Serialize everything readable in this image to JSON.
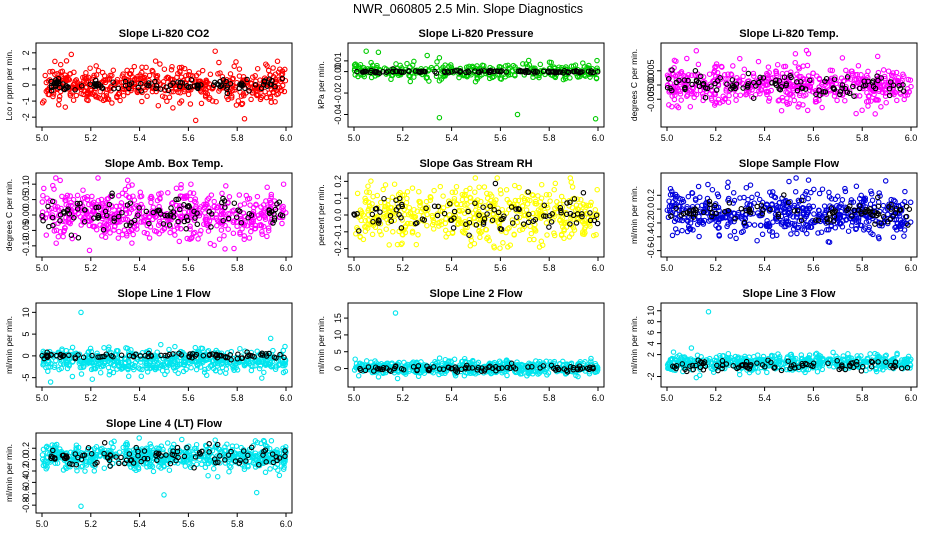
{
  "figure_title": "NWR_060805  2.5 Min. Slope Diagnostics",
  "chart_data": [
    {
      "type": "scatter",
      "title": "Slope Li-820 CO2",
      "ylabel": "Lco r ppm per min.",
      "xlim": [
        5.0,
        6.0
      ],
      "ylim": [
        -2.3,
        2.3
      ],
      "xticks": [
        "5.0",
        "5.2",
        "5.4",
        "5.6",
        "5.8",
        "6.0"
      ],
      "yticks": [
        "-2",
        "-1",
        "0",
        "1",
        "2"
      ],
      "ytick_values": [
        -2,
        -1,
        0,
        1,
        2
      ],
      "series": [
        {
          "color": "#ff0000",
          "n": 520,
          "center": 0.0,
          "spread": 0.55,
          "outliers": [
            [
              5.63,
              -2.2
            ],
            [
              5.71,
              2.1
            ],
            [
              5.12,
              1.9
            ],
            [
              5.83,
              -2.1
            ]
          ]
        },
        {
          "color": "#000000",
          "n": 110,
          "center": 0.0,
          "spread": 0.18,
          "outliers": []
        }
      ]
    },
    {
      "type": "scatter",
      "title": "Slope Li-820 Pressure",
      "ylabel": "kPa per min.",
      "xlim": [
        5.0,
        6.0
      ],
      "ylim": [
        -0.047,
        0.022
      ],
      "xticks": [
        "5.0",
        "5.2",
        "5.4",
        "5.6",
        "5.8",
        "6.0"
      ],
      "yticks": [
        "-0.04",
        "-0.02",
        "0.00",
        "0.01"
      ],
      "ytick_values": [
        -0.04,
        -0.02,
        0.0,
        0.01
      ],
      "series": [
        {
          "color": "#00cc00",
          "n": 320,
          "center": 0.0,
          "spread": 0.0035,
          "outliers": [
            [
              5.35,
              -0.043
            ],
            [
              5.67,
              -0.04
            ],
            [
              5.99,
              -0.044
            ],
            [
              5.05,
              0.019
            ],
            [
              5.1,
              0.018
            ],
            [
              5.3,
              0.015
            ]
          ]
        },
        {
          "color": "#000000",
          "n": 120,
          "center": 0.0,
          "spread": 0.0006,
          "outliers": []
        }
      ]
    },
    {
      "type": "scatter",
      "title": "Slope Li-820 Temp.",
      "ylabel": "degrees C per min.",
      "xlim": [
        5.0,
        6.0
      ],
      "ylim": [
        -0.013,
        0.013
      ],
      "xticks": [
        "5.0",
        "5.2",
        "5.4",
        "5.6",
        "5.8",
        "6.0"
      ],
      "yticks": [
        "-0.005",
        "0.000",
        "0.005"
      ],
      "ytick_values": [
        -0.005,
        0.0,
        0.005
      ],
      "series": [
        {
          "color": "#ff00ff",
          "n": 520,
          "center": 0.0,
          "spread": 0.0035,
          "outliers": [
            [
              5.12,
              0.012
            ],
            [
              5.58,
              0.011
            ]
          ]
        },
        {
          "color": "#000000",
          "n": 110,
          "center": 0.0,
          "spread": 0.002,
          "outliers": []
        }
      ]
    },
    {
      "type": "scatter",
      "title": "Slope Amb. Box Temp.",
      "ylabel": "degrees C per min.",
      "xlim": [
        5.0,
        6.0
      ],
      "ylim": [
        -0.12,
        0.12
      ],
      "xticks": [
        "5.0",
        "5.2",
        "5.4",
        "5.6",
        "5.8",
        "6.0"
      ],
      "yticks": [
        "-0.10",
        "-0.05",
        "0.00",
        "0.05",
        "0.10"
      ],
      "ytick_values": [
        -0.1,
        -0.05,
        0.0,
        0.05,
        0.1
      ],
      "series": [
        {
          "color": "#ff00ff",
          "n": 560,
          "center": 0.0,
          "spread": 0.042,
          "outliers": [
            [
              5.75,
              -0.11
            ],
            [
              5.99,
              0.1
            ]
          ]
        },
        {
          "color": "#000000",
          "n": 110,
          "center": 0.0,
          "spread": 0.025,
          "outliers": []
        }
      ]
    },
    {
      "type": "scatter",
      "title": "Slope Gas Stream RH",
      "ylabel": "percent per min.",
      "xlim": [
        5.0,
        6.0
      ],
      "ylim": [
        -0.22,
        0.22
      ],
      "xticks": [
        "5.0",
        "5.2",
        "5.4",
        "5.6",
        "5.8",
        "6.0"
      ],
      "yticks": [
        "-0.2",
        "-0.1",
        "0.0",
        "0.1",
        "0.2"
      ],
      "ytick_values": [
        -0.2,
        -0.1,
        0.0,
        0.1,
        0.2
      ],
      "series": [
        {
          "color": "#ffff00",
          "n": 520,
          "center": 0.0,
          "spread": 0.08,
          "outliers": []
        },
        {
          "color": "#000000",
          "n": 100,
          "center": 0.0,
          "spread": 0.05,
          "outliers": []
        }
      ]
    },
    {
      "type": "scatter",
      "title": "Slope Sample Flow",
      "ylabel": "ml/min per min.",
      "xlim": [
        5.0,
        6.0
      ],
      "ylim": [
        -0.62,
        0.45
      ],
      "xticks": [
        "5.0",
        "5.2",
        "5.4",
        "5.6",
        "5.8",
        "6.0"
      ],
      "yticks": [
        "-0.6",
        "-0.4",
        "-0.2",
        "0.0",
        "0.2"
      ],
      "ytick_values": [
        -0.6,
        -0.4,
        -0.2,
        0.0,
        0.2
      ],
      "series": [
        {
          "color": "#0000dd",
          "n": 560,
          "center": -0.06,
          "spread": 0.16,
          "outliers": [
            [
              5.5,
              0.4
            ],
            [
              5.58,
              0.42
            ]
          ]
        },
        {
          "color": "#000000",
          "n": 100,
          "center": -0.05,
          "spread": 0.08,
          "outliers": []
        }
      ]
    },
    {
      "type": "scatter",
      "title": "Slope Line 1 Flow",
      "ylabel": "ml/min per min.",
      "xlim": [
        5.0,
        6.0
      ],
      "ylim": [
        -6,
        11
      ],
      "xticks": [
        "5.0",
        "5.2",
        "5.4",
        "5.6",
        "5.8",
        "6.0"
      ],
      "yticks": [
        "-5",
        "0",
        "5",
        "10"
      ],
      "ytick_values": [
        -5,
        0,
        5,
        10
      ],
      "series": [
        {
          "color": "#00e5ee",
          "n": 560,
          "center": -1.2,
          "spread": 1.4,
          "outliers": [
            [
              5.16,
              10
            ]
          ]
        },
        {
          "color": "#000000",
          "n": 90,
          "center": 0.0,
          "spread": 0.35,
          "outliers": []
        }
      ]
    },
    {
      "type": "scatter",
      "title": "Slope Line 2 Flow",
      "ylabel": "ml/min per min.",
      "xlim": [
        5.0,
        6.0
      ],
      "ylim": [
        -4,
        18
      ],
      "xticks": [
        "5.0",
        "5.2",
        "5.4",
        "5.6",
        "5.8",
        "6.0"
      ],
      "yticks": [
        "0",
        "5",
        "10",
        "15"
      ],
      "ytick_values": [
        0,
        5,
        10,
        15
      ],
      "series": [
        {
          "color": "#00e5ee",
          "n": 560,
          "center": 0.2,
          "spread": 1.0,
          "outliers": [
            [
              5.17,
              16.5
            ]
          ]
        },
        {
          "color": "#000000",
          "n": 90,
          "center": 0.0,
          "spread": 0.5,
          "outliers": []
        }
      ]
    },
    {
      "type": "scatter",
      "title": "Slope Line 3 Flow",
      "ylabel": "ml/min per min.",
      "xlim": [
        5.0,
        6.0
      ],
      "ylim": [
        -3,
        10.5
      ],
      "xticks": [
        "5.0",
        "5.2",
        "5.4",
        "5.6",
        "5.8",
        "6.0"
      ],
      "yticks": [
        "-2",
        "2",
        "4",
        "6",
        "8",
        "10"
      ],
      "ytick_values": [
        -2,
        2,
        4,
        6,
        8,
        10
      ],
      "series": [
        {
          "color": "#00e5ee",
          "n": 560,
          "center": 0.5,
          "spread": 0.7,
          "outliers": [
            [
              5.17,
              9.8
            ],
            [
              5.1,
              3.2
            ],
            [
              5.12,
              -2.2
            ]
          ]
        },
        {
          "color": "#000000",
          "n": 90,
          "center": 0.0,
          "spread": 0.4,
          "outliers": []
        }
      ]
    },
    {
      "type": "scatter",
      "title": "Slope Line 4 (LT) Flow",
      "ylabel": "ml/min per min.",
      "xlim": [
        5.0,
        6.0
      ],
      "ylim": [
        -0.85,
        0.38
      ],
      "xticks": [
        "5.0",
        "5.2",
        "5.4",
        "5.6",
        "5.8",
        "6.0"
      ],
      "yticks": [
        "-0.8",
        "-0.6",
        "-0.4",
        "-0.2",
        "0.0",
        "0.2"
      ],
      "ytick_values": [
        -0.8,
        -0.6,
        -0.4,
        -0.2,
        0.0,
        0.2
      ],
      "series": [
        {
          "color": "#00e5ee",
          "n": 600,
          "center": 0.05,
          "spread": 0.11,
          "outliers": [
            [
              5.16,
              -0.82
            ],
            [
              5.5,
              -0.62
            ],
            [
              5.88,
              -0.58
            ],
            [
              5.72,
              -0.3
            ],
            [
              5.94,
              0.33
            ]
          ]
        },
        {
          "color": "#000000",
          "n": 100,
          "center": 0.05,
          "spread": 0.1,
          "outliers": []
        }
      ]
    }
  ]
}
